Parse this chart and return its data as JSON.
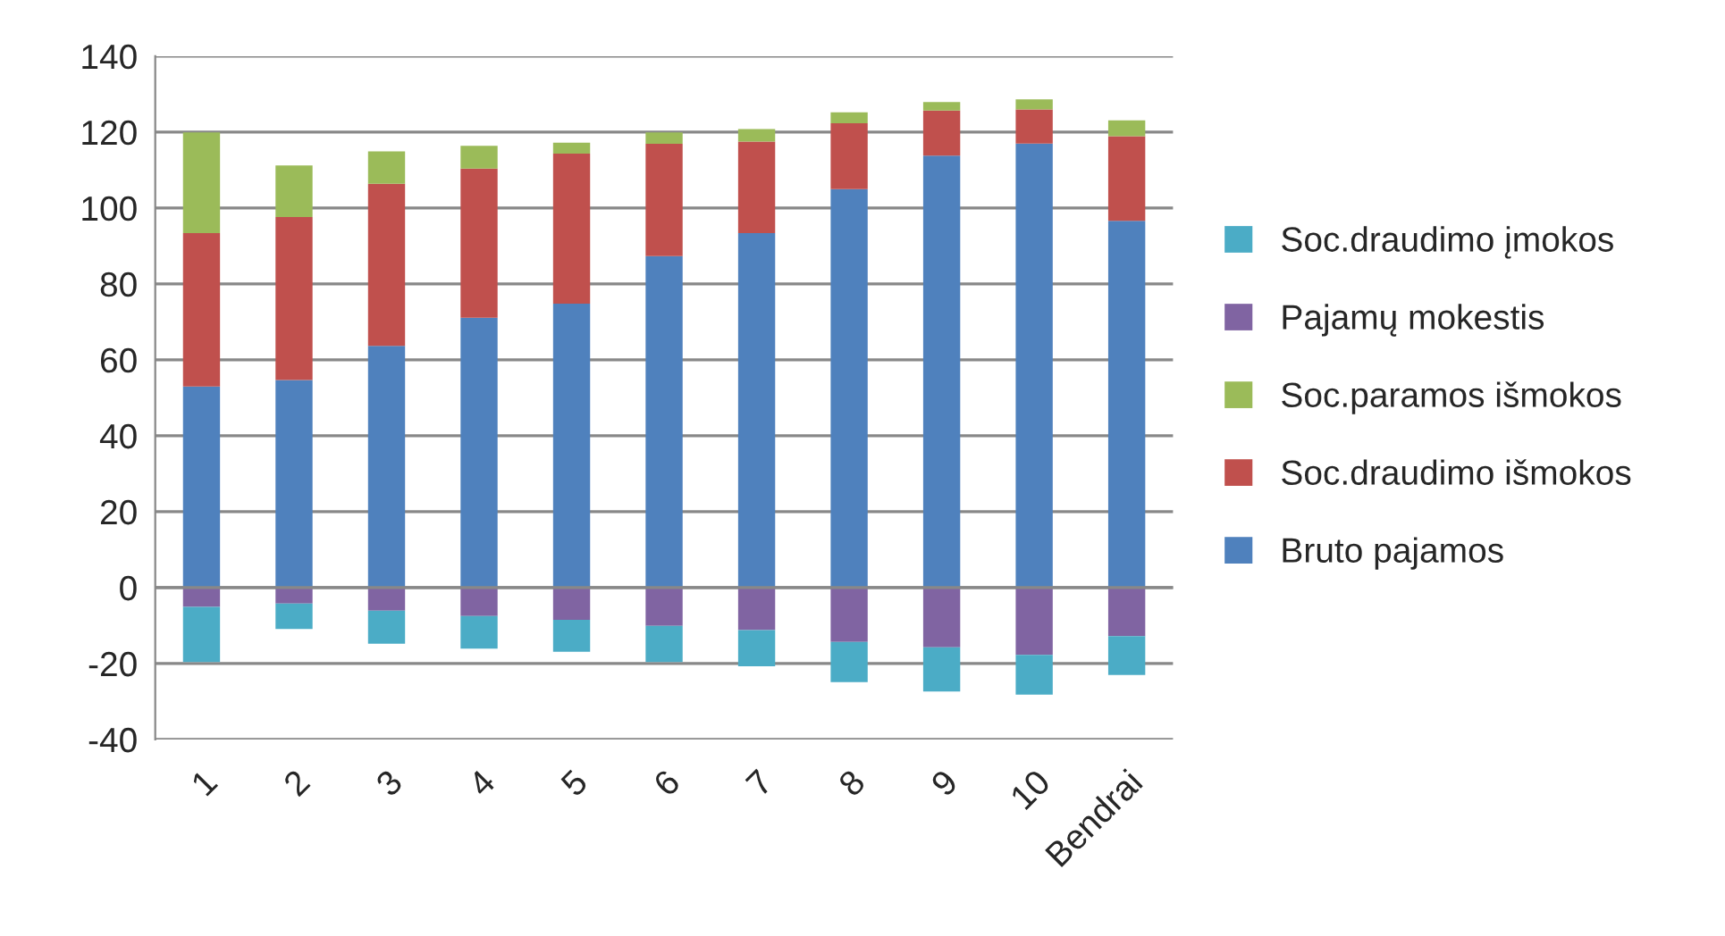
{
  "chart_data": {
    "type": "bar",
    "stacked": true,
    "categories": [
      "1",
      "2",
      "3",
      "4",
      "5",
      "6",
      "7",
      "8",
      "9",
      "10",
      "Bendrai"
    ],
    "series": [
      {
        "name": "Bruto pajamos",
        "color": "#4f81bd",
        "values": [
          53.0,
          54.7,
          63.7,
          71.1,
          74.8,
          87.3,
          93.4,
          105.0,
          113.8,
          117.0,
          96.6
        ]
      },
      {
        "name": "Soc.draudimo išmokos",
        "color": "#c0504d",
        "values": [
          40.4,
          42.9,
          42.7,
          39.3,
          39.5,
          29.6,
          24.1,
          17.3,
          11.9,
          9.0,
          22.3
        ]
      },
      {
        "name": "Soc.paramos išmokos",
        "color": "#9bbb59",
        "values": [
          26.5,
          13.6,
          8.5,
          6.0,
          2.9,
          3.0,
          3.3,
          2.9,
          2.2,
          2.6,
          4.2
        ]
      },
      {
        "name": "Pajamų mokestis",
        "color": "#8064a2",
        "values": [
          -5.1,
          -4.2,
          -6.1,
          -7.5,
          -8.5,
          -10.1,
          -11.2,
          -14.3,
          -15.7,
          -17.7,
          -12.8
        ]
      },
      {
        "name": "Soc.draudimo įmokos",
        "color": "#4bacc6",
        "values": [
          -14.5,
          -6.7,
          -8.7,
          -8.6,
          -8.4,
          -9.5,
          -9.5,
          -10.6,
          -11.7,
          -10.5,
          -10.2
        ]
      }
    ],
    "ylim": [
      -40,
      140
    ],
    "yticks": [
      -40,
      -20,
      0,
      20,
      40,
      60,
      80,
      100,
      120,
      140
    ],
    "grid": "y",
    "legend": "right"
  }
}
